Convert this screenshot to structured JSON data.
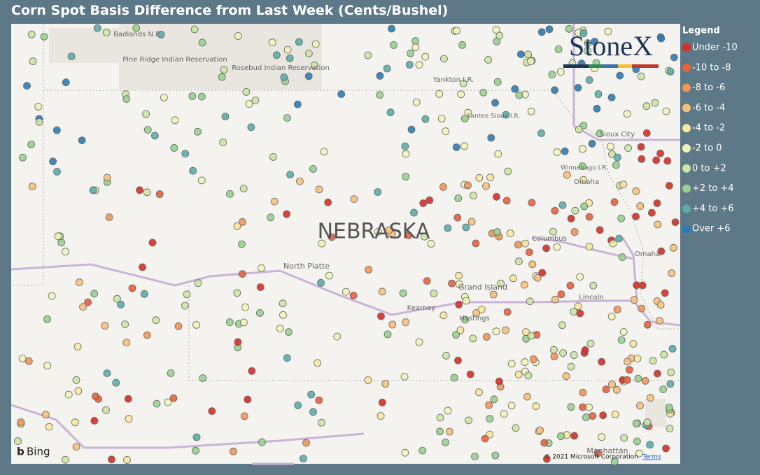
{
  "title": "Corn Spot Basis Difference from Last Week (Cents/Bushel)",
  "legend": {
    "title": "Legend",
    "items": [
      {
        "label": "Under -10",
        "color": "#d62f27"
      },
      {
        "label": "-10 to -8",
        "color": "#e8603c"
      },
      {
        "label": "-8 to -6",
        "color": "#f2955a"
      },
      {
        "label": "-6 to -4",
        "color": "#f7c07a"
      },
      {
        "label": "-4 to -2",
        "color": "#fbe79c"
      },
      {
        "label": "-2 to 0",
        "color": "#f1f4b8"
      },
      {
        "label": "0 to +2",
        "color": "#cbe6a4"
      },
      {
        "label": "+2 to +4",
        "color": "#98d08e"
      },
      {
        "label": "+4 to +6",
        "color": "#5aaeaa"
      },
      {
        "label": "Over +6",
        "color": "#2c7bb6"
      }
    ]
  },
  "map": {
    "labels": [
      "Badlands N.P.",
      "Pine Ridge Indian Reservation",
      "Rosebud Indian Reservation",
      "Yankton I.R.",
      "Santee Sioux I.R.",
      "Sioux City",
      "Winnebago I.R.",
      "Omaha",
      "NEBRASKA",
      "Columbus",
      "Omaha",
      "North Platte",
      "Grand Island",
      "Kearney",
      "Hastings",
      "Lincoln",
      "Manhattan"
    ],
    "logo": "StoneX",
    "provider": "Bing",
    "copyright": "© 2021 Microsoft Corporation",
    "terms": "Terms"
  }
}
